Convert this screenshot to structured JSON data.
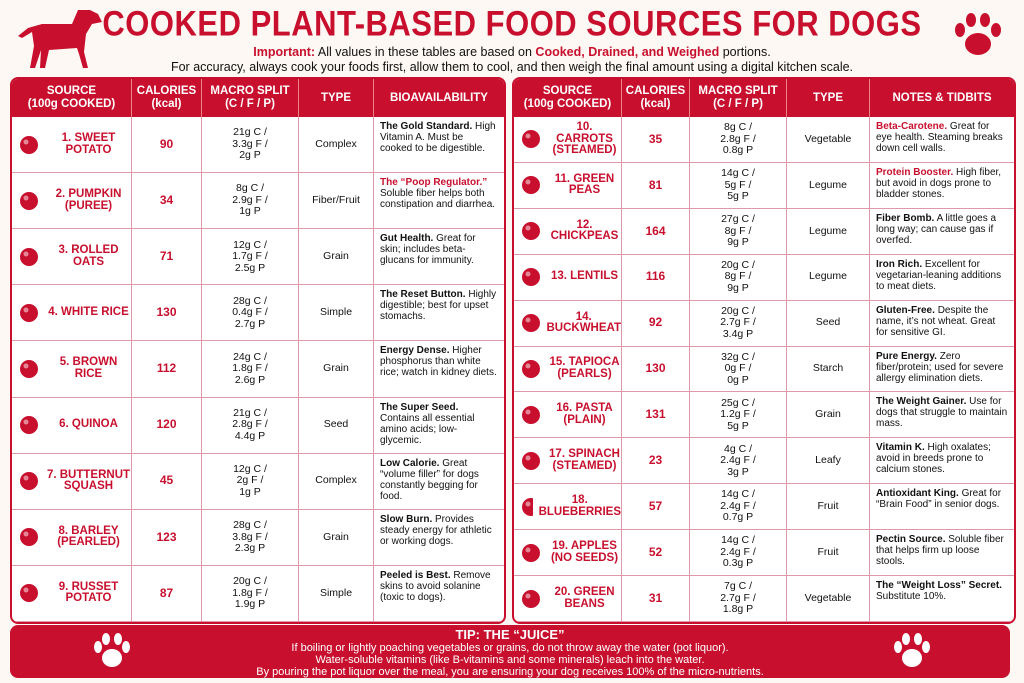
{
  "header": {
    "title": "COOKED PLANT-BASED FOOD SOURCES FOR DOGS",
    "important": [
      "Important:",
      "All values in these tables are based on",
      "Cooked, Drained, and Weighed",
      "portions."
    ],
    "line2": "For accuracy, always cook your foods first, allow them to cool, and then weigh the final amount using a digital kitchen scale."
  },
  "tables": [
    {
      "columns": [
        [
          "SOURCE",
          "(100g COOKED)"
        ],
        [
          "CALORIES",
          "(kcal)"
        ],
        [
          "MACRO SPLIT",
          "(C / F / P)"
        ],
        [
          "TYPE"
        ],
        [
          "BIOAVAILABILITY"
        ]
      ],
      "rows": [
        {
          "source": [
            "1. SWEET",
            "POTATO"
          ],
          "calories": 90,
          "macro": [
            "21g C /",
            "3.3g F /",
            "2g P"
          ],
          "type": "Complex",
          "lead": "The Gold Standard.",
          "text": "High Vitamin A. Must be cooked to be digestible."
        },
        {
          "source": [
            "2. PUMPKIN",
            "(PUREE)"
          ],
          "calories": 34,
          "macro": [
            "8g C /",
            "2.9g F /",
            "1g P"
          ],
          "type": "Fiber/Fruit",
          "lead": "The “Poop Regulator.”",
          "lead_color": "#c8102e",
          "text": "Soluble fiber helps both constipation and diarrhea."
        },
        {
          "source": [
            "3. ROLLED",
            "OATS"
          ],
          "calories": 71,
          "macro": [
            "12g C /",
            "1.7g F /",
            "2.5g P"
          ],
          "type": "Grain",
          "lead": "Gut Health.",
          "text": "Great for skin; includes beta-glucans for immunity."
        },
        {
          "source": [
            "4. WHITE RICE"
          ],
          "calories": 130,
          "macro": [
            "28g C /",
            "0.4g F /",
            "2.7g P"
          ],
          "type": "Simple",
          "lead": "The Reset Button.",
          "text": "Highly digestible; best for upset stomachs."
        },
        {
          "source": [
            "5. BROWN RICE"
          ],
          "calories": 112,
          "macro": [
            "24g C /",
            "1.8g F /",
            "2.6g P"
          ],
          "type": "Grain",
          "lead": "Energy Dense.",
          "text": "Higher phosphorus than white rice; watch in kidney diets."
        },
        {
          "source": [
            "6. QUINOA"
          ],
          "calories": 120,
          "macro": [
            "21g C /",
            "2.8g F /",
            "4.4g P"
          ],
          "type": "Seed",
          "lead": "The Super Seed.",
          "text": "Contains all essential amino acids; low-glycemic."
        },
        {
          "source": [
            "7. BUTTERNUT",
            "SQUASH"
          ],
          "calories": 45,
          "macro": [
            "12g C /",
            "2g F /",
            "1g P"
          ],
          "type": "Complex",
          "lead": "Low Calorie.",
          "text": "Great “volume filler” for dogs constantly begging for food."
        },
        {
          "source": [
            "8. BARLEY",
            "(PEARLED)"
          ],
          "calories": 123,
          "macro": [
            "28g C /",
            "3.8g F /",
            "2.3g P"
          ],
          "type": "Grain",
          "lead": "Slow Burn.",
          "text": "Provides steady energy for athletic or working dogs."
        },
        {
          "source": [
            "9. RUSSET",
            "POTATO"
          ],
          "calories": 87,
          "macro": [
            "20g C /",
            "1.8g F /",
            "1.9g P"
          ],
          "type": "Simple",
          "lead": "Peeled is Best.",
          "text": "Remove skins to avoid solanine (toxic to dogs)."
        }
      ]
    },
    {
      "columns": [
        [
          "SOURCE",
          "(100g COOKED)"
        ],
        [
          "CALORIES",
          "(kcal)"
        ],
        [
          "MACRO SPLIT",
          "(C / F / P)"
        ],
        [
          "TYPE"
        ],
        [
          "NOTES & TIDBITS"
        ]
      ],
      "rows": [
        {
          "source": [
            "10. CARROTS",
            "(STEAMED)"
          ],
          "calories": 35,
          "macro": [
            "8g C /",
            "2.8g F /",
            "0.8g P"
          ],
          "type": "Vegetable",
          "lead": "Beta-Carotene.",
          "lead_color": "#c8102e",
          "text": "Great for eye health. Steaming breaks down cell walls."
        },
        {
          "source": [
            "11. GREEN",
            "PEAS"
          ],
          "calories": 81,
          "macro": [
            "14g C /",
            "5g F /",
            "5g P"
          ],
          "type": "Legume",
          "lead": "Protein Booster.",
          "lead_color": "#c8102e",
          "text": "High fiber, but avoid in dogs prone to bladder stones."
        },
        {
          "source": [
            "12. CHICKPEAS"
          ],
          "calories": 164,
          "macro": [
            "27g C /",
            "8g F /",
            "9g P"
          ],
          "type": "Legume",
          "lead": "Fiber Bomb.",
          "text": "A little goes a long way; can cause gas if overfed."
        },
        {
          "source": [
            "13. LENTILS"
          ],
          "calories": 116,
          "macro": [
            "20g C /",
            "8g F /",
            "9g P"
          ],
          "type": "Legume",
          "lead": "Iron Rich.",
          "text": "Excellent for vegetarian-leaning additions to meat diets."
        },
        {
          "source": [
            "14. BUCKWHEAT"
          ],
          "calories": 92,
          "macro": [
            "20g C /",
            "2.7g F /",
            "3.4g P"
          ],
          "type": "Seed",
          "lead": "Gluten-Free.",
          "text": "Despite the name, it’s not wheat. Great for sensitive GI."
        },
        {
          "source": [
            "15. TAPIOCA",
            "(PEARLS)"
          ],
          "calories": 130,
          "macro": [
            "32g C /",
            "0g F /",
            "0g P"
          ],
          "type": "Starch",
          "lead": "Pure Energy.",
          "text": "Zero fiber/protein; used for severe allergy elimination diets."
        },
        {
          "source": [
            "16. PASTA",
            "(PLAIN)"
          ],
          "calories": 131,
          "macro": [
            "25g C /",
            "1.2g F /",
            "5g P"
          ],
          "type": "Grain",
          "lead": "The Weight Gainer.",
          "text": "Use for dogs that struggle to maintain mass."
        },
        {
          "source": [
            "17. SPINACH",
            "(STEAMED)"
          ],
          "calories": 23,
          "macro": [
            "4g C /",
            "2.4g F /",
            "3g P"
          ],
          "type": "Leafy",
          "lead": "Vitamin K.",
          "text": "High oxalates; avoid in breeds prone to calcium stones."
        },
        {
          "source": [
            "18. BLUEBERRIES"
          ],
          "calories": 57,
          "macro": [
            "14g C /",
            "2.4g F /",
            "0.7g P"
          ],
          "type": "Fruit",
          "lead": "Antioxidant King.",
          "text": "Great for “Brain Food” in senior dogs."
        },
        {
          "source": [
            "19. APPLES",
            "(NO SEEDS)"
          ],
          "calories": 52,
          "macro": [
            "14g C /",
            "2.4g F /",
            "0.3g P"
          ],
          "type": "Fruit",
          "lead": "Pectin Source.",
          "text": "Soluble fiber that helps firm up loose stools."
        },
        {
          "source": [
            "20. GREEN",
            "BEANS"
          ],
          "calories": 31,
          "macro": [
            "7g C /",
            "2.7g F /",
            "1.8g P"
          ],
          "type": "Vegetable",
          "lead": "The “Weight Loss” Secret.",
          "text": "Substitute 10%."
        }
      ]
    }
  ],
  "footer": {
    "title": "TIP: THE “JUICE”",
    "lines": [
      "If boiling or lightly poaching vegetables or grains, do not throw away the water (pot liquor).",
      "Water-soluble vitamins (like B-vitamins and some minerals) leach into the water.",
      "By pouring the pot liquor over the meal, you are ensuring your dog receives 100% of the micro-nutrients."
    ]
  }
}
